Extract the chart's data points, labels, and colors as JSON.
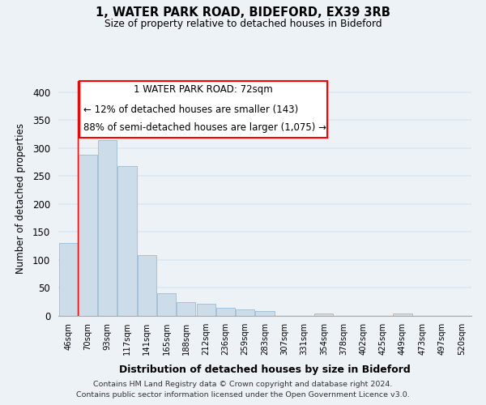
{
  "title": "1, WATER PARK ROAD, BIDEFORD, EX39 3RB",
  "subtitle": "Size of property relative to detached houses in Bideford",
  "xlabel": "Distribution of detached houses by size in Bideford",
  "ylabel": "Number of detached properties",
  "bar_labels": [
    "46sqm",
    "70sqm",
    "93sqm",
    "117sqm",
    "141sqm",
    "165sqm",
    "188sqm",
    "212sqm",
    "236sqm",
    "259sqm",
    "283sqm",
    "307sqm",
    "331sqm",
    "354sqm",
    "378sqm",
    "402sqm",
    "425sqm",
    "449sqm",
    "473sqm",
    "497sqm",
    "520sqm"
  ],
  "bar_values": [
    130,
    288,
    314,
    268,
    109,
    40,
    25,
    22,
    14,
    11,
    9,
    0,
    0,
    5,
    0,
    0,
    0,
    5,
    0,
    0,
    0
  ],
  "bar_color": "#ccdce9",
  "bar_edge_color": "#9bbdd4",
  "ylim": [
    0,
    420
  ],
  "yticks": [
    0,
    50,
    100,
    150,
    200,
    250,
    300,
    350,
    400
  ],
  "annotation_line1": "1 WATER PARK ROAD: 72sqm",
  "annotation_line2": "← 12% of detached houses are smaller (143)",
  "annotation_line3": "88% of semi-detached houses are larger (1,075) →",
  "red_line_bin": 0.5,
  "footer_line1": "Contains HM Land Registry data © Crown copyright and database right 2024.",
  "footer_line2": "Contains public sector information licensed under the Open Government Licence v3.0.",
  "background_color": "#edf2f7",
  "grid_color": "#dce8f0"
}
